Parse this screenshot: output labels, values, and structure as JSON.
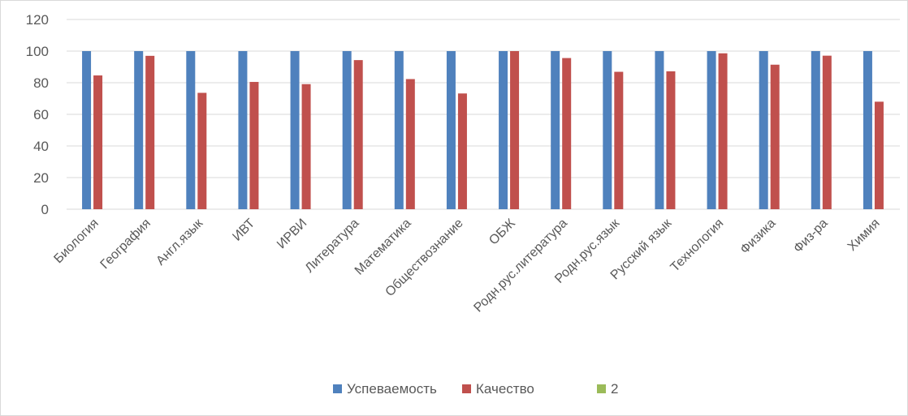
{
  "chart_data": {
    "type": "bar",
    "categories": [
      "Биология",
      "География",
      "Англ.язык",
      "ИВТ",
      "ИРВИ",
      "Литература",
      "Математика",
      "Обществознание",
      "ОБЖ",
      "Родн.рус.литература",
      "Родн.рус.язык",
      "Русский язык",
      "Технология",
      "Физика",
      "Физ-ра",
      "Химия"
    ],
    "series": [
      {
        "name": "Успеваемость",
        "color": "#4f81bd",
        "values": [
          100,
          100,
          100,
          100,
          100,
          100,
          100,
          100,
          100,
          100,
          100,
          100,
          100,
          100,
          100,
          100
        ]
      },
      {
        "name": "Качество",
        "color": "#c0504d",
        "values": [
          84.6,
          97,
          73.6,
          80.5,
          79.1,
          94.3,
          82.3,
          73.2,
          100,
          95.6,
          86.9,
          87.2,
          98.6,
          91.4,
          97.1,
          68
        ]
      },
      {
        "name": "2",
        "color": "#9bbb59",
        "values": [
          0,
          0,
          0,
          0,
          0,
          0,
          0,
          0,
          0,
          0,
          0,
          0,
          0,
          0,
          0,
          0
        ]
      }
    ],
    "ylim": [
      0,
      120
    ],
    "yticks": [
      "0",
      "20",
      "40",
      "60",
      "80",
      "100",
      "120"
    ],
    "grid": true,
    "legend": "bottom",
    "title": "",
    "xlabel": "",
    "ylabel": ""
  }
}
